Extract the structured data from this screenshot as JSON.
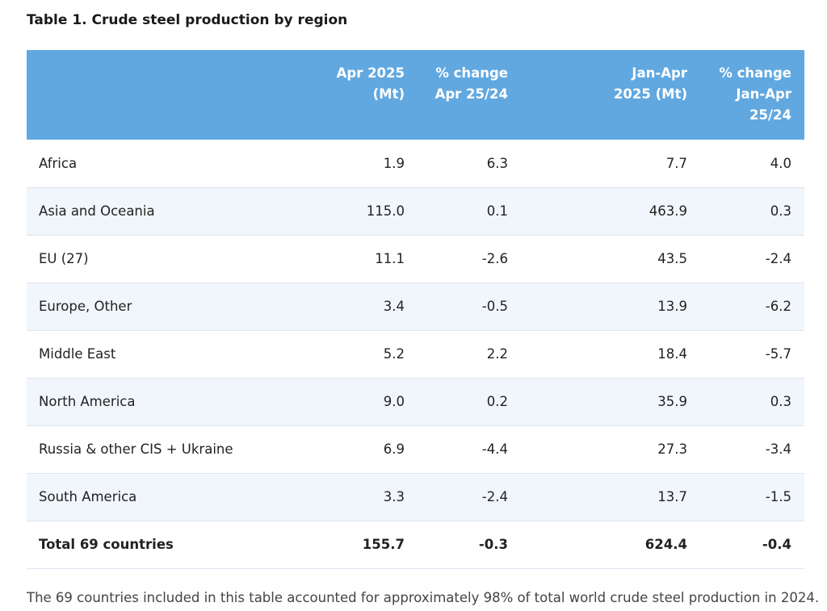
{
  "title": "Table 1. Crude steel production by region",
  "columns": [
    "",
    "Apr 2025\n(Mt)",
    "% change\nApr 25/24",
    "Jan-Apr\n2025 (Mt)",
    "% change\nJan-Apr\n25/24"
  ],
  "rows": [
    [
      "Africa",
      "1.9",
      "6.3",
      "7.7",
      "4.0"
    ],
    [
      "Asia and Oceania",
      "115.0",
      "0.1",
      "463.9",
      "0.3"
    ],
    [
      "EU (27)",
      "11.1",
      "-2.6",
      "43.5",
      "-2.4"
    ],
    [
      "Europe, Other",
      "3.4",
      "-0.5",
      "13.9",
      "-6.2"
    ],
    [
      "Middle East",
      "5.2",
      "2.2",
      "18.4",
      "-5.7"
    ],
    [
      "North America",
      "9.0",
      "0.2",
      "35.9",
      "0.3"
    ],
    [
      "Russia & other CIS + Ukraine",
      "6.9",
      "-4.4",
      "27.3",
      "-3.4"
    ],
    [
      "South America",
      "3.3",
      "-2.4",
      "13.7",
      "-1.5"
    ],
    [
      "Total 69 countries",
      "155.7",
      "-0.3",
      "624.4",
      "-0.4"
    ]
  ],
  "footnote": "The 69 countries included in this table accounted for approximately 98% of total world crude steel production in 2024."
}
